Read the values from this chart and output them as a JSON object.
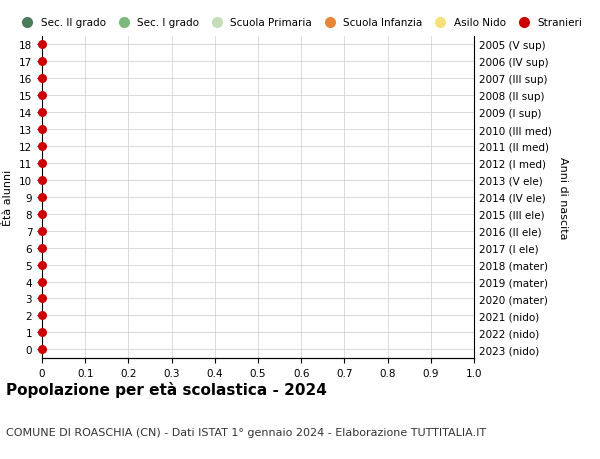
{
  "title": "Popolazione per età scolastica - 2024",
  "subtitle": "COMUNE DI ROASCHIA (CN) - Dati ISTAT 1° gennaio 2024 - Elaborazione TUTTITALIA.IT",
  "ylabel_left": "Ètà alunni",
  "ylabel_right": "Anni di nascita",
  "xlim": [
    0,
    1.0
  ],
  "ylim": [
    -0.5,
    18.5
  ],
  "yticks": [
    0,
    1,
    2,
    3,
    4,
    5,
    6,
    7,
    8,
    9,
    10,
    11,
    12,
    13,
    14,
    15,
    16,
    17,
    18
  ],
  "xticks": [
    0,
    0.1,
    0.2,
    0.3,
    0.4,
    0.5,
    0.6,
    0.7,
    0.8,
    0.9,
    1.0
  ],
  "right_ytick_labels": [
    "2023 (nido)",
    "2022 (nido)",
    "2021 (nido)",
    "2020 (mater)",
    "2019 (mater)",
    "2018 (mater)",
    "2017 (I ele)",
    "2016 (II ele)",
    "2015 (III ele)",
    "2014 (IV ele)",
    "2013 (V ele)",
    "2012 (I med)",
    "2011 (II med)",
    "2010 (III med)",
    "2009 (I sup)",
    "2008 (II sup)",
    "2007 (III sup)",
    "2006 (IV sup)",
    "2005 (V sup)"
  ],
  "stranieri_color": "#cc0000",
  "stranieri_x": [
    0,
    0,
    0,
    0,
    0,
    0,
    0,
    0,
    0,
    0,
    0,
    0,
    0,
    0,
    0,
    0,
    0,
    0,
    0
  ],
  "stranieri_y": [
    0,
    1,
    2,
    3,
    4,
    5,
    6,
    7,
    8,
    9,
    10,
    11,
    12,
    13,
    14,
    15,
    16,
    17,
    18
  ],
  "legend_entries": [
    {
      "label": "Sec. II grado",
      "color": "#4a7c59"
    },
    {
      "label": "Sec. I grado",
      "color": "#7db87d"
    },
    {
      "label": "Scuola Primaria",
      "color": "#c5deb8"
    },
    {
      "label": "Scuola Infanzia",
      "color": "#e8873a"
    },
    {
      "label": "Asilo Nido",
      "color": "#f5e07a"
    },
    {
      "label": "Stranieri",
      "color": "#cc0000"
    }
  ],
  "bg_color": "#ffffff",
  "grid_color": "#cccccc",
  "dot_size": 30,
  "title_fontsize": 11,
  "subtitle_fontsize": 8,
  "legend_fontsize": 7.5,
  "axis_label_fontsize": 8,
  "tick_fontsize": 7.5
}
